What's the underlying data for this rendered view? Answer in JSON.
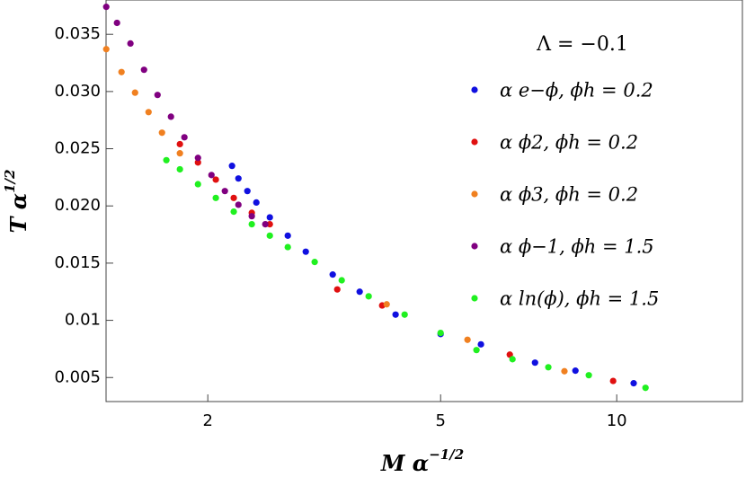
{
  "chart_data": {
    "type": "scatter",
    "xlabel": "M α",
    "xlabel_exponent": "−1/2",
    "ylabel": "T α",
    "ylabel_exponent": "1/2",
    "legend_title": "Λ = −0.1",
    "log_x": true,
    "grid": false,
    "legend": "upper right",
    "xlim": [
      1.34,
      16.4
    ],
    "ylim": [
      0.0029,
      0.038
    ],
    "xticks": [
      2,
      5,
      10
    ],
    "yticks": [
      0.005,
      0.01,
      {
        "value": 0.015,
        "label": "0.015"
      },
      {
        "value": 0.02,
        "label": "0.020"
      },
      0.025,
      {
        "value": 0.03,
        "label": "0.030"
      },
      0.035
    ],
    "series": [
      {
        "name": "α e−ϕ,  ϕh = 0.2",
        "color": "#1010e0",
        "x": [
          2.2,
          2.256,
          2.337,
          2.421,
          2.553,
          2.74,
          2.941,
          3.27,
          3.636,
          4.188,
          5.0,
          5.86,
          7.25,
          8.5,
          10.69
        ],
        "values": [
          0.0235,
          0.0224,
          0.0213,
          0.0203,
          0.019,
          0.0174,
          0.016,
          0.014,
          0.0125,
          0.0105,
          0.0088,
          0.0079,
          0.0063,
          0.0056,
          0.0045
        ]
      },
      {
        "name": "α ϕ2,  ϕh = 0.2",
        "color": "#e01010",
        "x": [
          1.792,
          1.924,
          2.064,
          2.215,
          2.378,
          2.553,
          3.329,
          3.972,
          6.565,
          9.86
        ],
        "values": [
          0.0254,
          0.0238,
          0.0223,
          0.0207,
          0.0194,
          0.0184,
          0.0127,
          0.0113,
          0.007,
          0.0047
        ]
      },
      {
        "name": "α ϕ3,  ϕh = 0.2",
        "color": "#f08020",
        "x": [
          1.341,
          1.424,
          1.502,
          1.584,
          1.67,
          1.792,
          4.044,
          5.558,
          8.14
        ],
        "values": [
          0.0337,
          0.0317,
          0.0299,
          0.0282,
          0.0264,
          0.0246,
          0.0114,
          0.0083,
          0.00555
        ]
      },
      {
        "name": "α ϕ−1,  ϕh = 1.5",
        "color": "#800080",
        "x": [
          1.341,
          1.399,
          1.475,
          1.556,
          1.641,
          1.73,
          1.824,
          1.924,
          2.029,
          2.139,
          2.256,
          2.378,
          2.508
        ],
        "values": [
          0.0374,
          0.036,
          0.0342,
          0.0319,
          0.0297,
          0.0278,
          0.026,
          0.0242,
          0.0227,
          0.0213,
          0.0201,
          0.0191,
          0.0184
        ]
      },
      {
        "name": "α ln(ϕ),  ϕh = 1.5",
        "color": "#20f020",
        "x": [
          1.699,
          1.792,
          1.924,
          2.064,
          2.215,
          2.378,
          2.553,
          2.74,
          3.046,
          3.388,
          3.767,
          4.34,
          5.0,
          5.758,
          6.635,
          7.64,
          8.96,
          11.2
        ],
        "values": [
          0.024,
          0.0232,
          0.0219,
          0.0207,
          0.0195,
          0.0184,
          0.0174,
          0.0164,
          0.0151,
          0.0135,
          0.0121,
          0.0105,
          0.0089,
          0.0074,
          0.0066,
          0.0059,
          0.0052,
          0.0041
        ]
      }
    ]
  }
}
